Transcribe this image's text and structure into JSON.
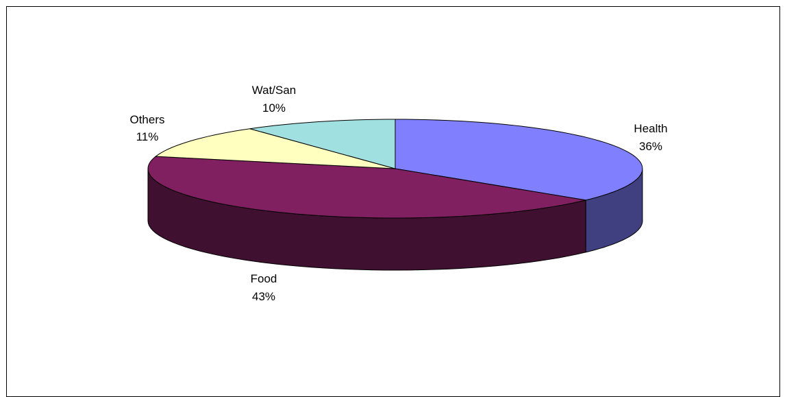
{
  "chart_data": {
    "type": "pie",
    "style": "3d",
    "title": "",
    "legend": "none",
    "slices": [
      {
        "label": "Health",
        "value": 36,
        "value_label": "36%",
        "color": "#8080ff",
        "side_color": "#404080"
      },
      {
        "label": "Food",
        "value": 43,
        "value_label": "43%",
        "color": "#802060",
        "side_color": "#401030"
      },
      {
        "label": "Others",
        "value": 11,
        "value_label": "11%",
        "color": "#ffffc0",
        "side_color": "#808060"
      },
      {
        "label": "Wat/San",
        "value": 10,
        "value_label": "10%",
        "color": "#a0e0e0",
        "side_color": "#507070"
      }
    ]
  }
}
